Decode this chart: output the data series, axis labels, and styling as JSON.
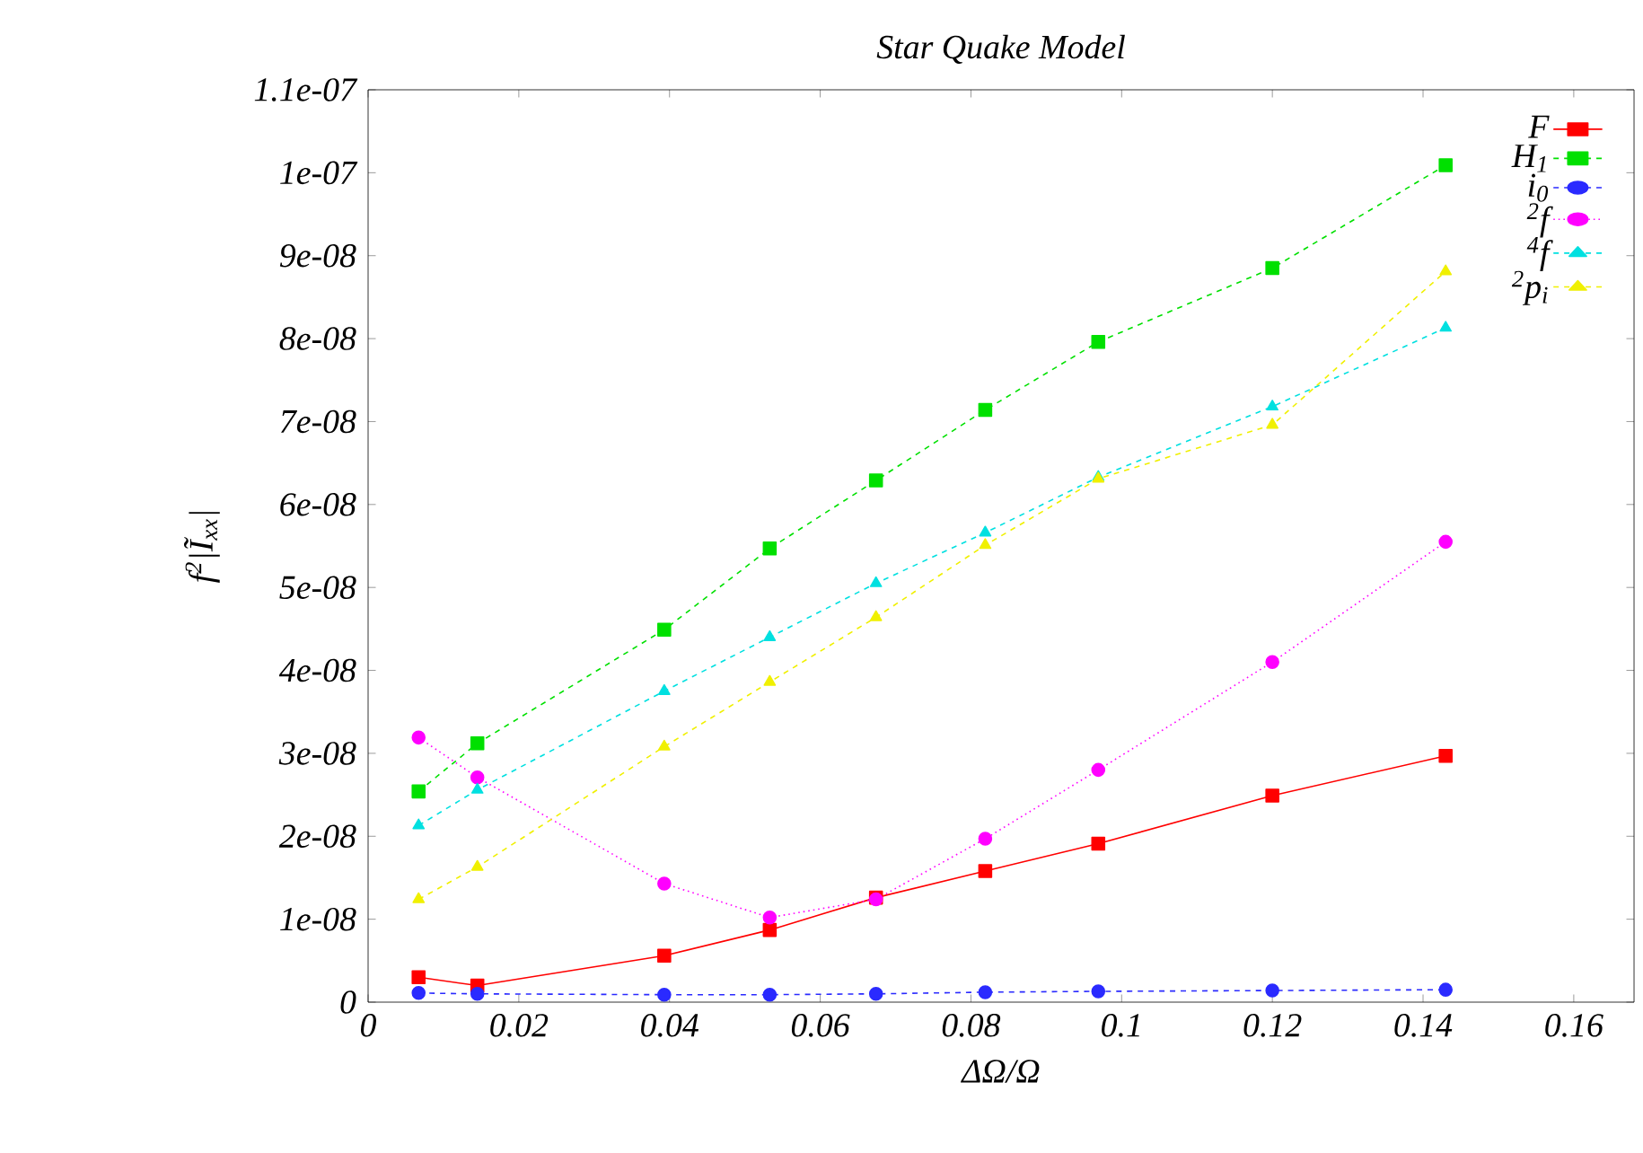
{
  "chart_data": {
    "type": "line",
    "title": "Star Quake Model",
    "xlabel": "ΔΩ/Ω",
    "ylabel": "f$^{2}$|Ĩ$_{xx}$|",
    "x": [
      0.0067,
      0.0145,
      0.0393,
      0.0533,
      0.0674,
      0.0819,
      0.0969,
      0.12,
      0.143
    ],
    "series": [
      {
        "name": "F",
        "color": "#ff0000",
        "marker": "square",
        "line_style": "solid",
        "values": [
          3e-09,
          2e-09,
          5.6e-09,
          8.7e-09,
          1.26e-08,
          1.58e-08,
          1.91e-08,
          2.49e-08,
          2.97e-08
        ]
      },
      {
        "name": "H$_{1}$",
        "color": "#00e000",
        "marker": "square",
        "line_style": "dashed",
        "values": [
          2.54e-08,
          3.12e-08,
          4.49e-08,
          5.47e-08,
          6.29e-08,
          7.14e-08,
          7.96e-08,
          8.85e-08,
          1.009e-07
        ]
      },
      {
        "name": "i$_{0}$",
        "color": "#2a2aff",
        "marker": "circle",
        "line_style": "dashed",
        "values": [
          1.1e-09,
          1e-09,
          9e-10,
          9e-10,
          1e-09,
          1.2e-09,
          1.3e-09,
          1.4e-09,
          1.5e-09
        ]
      },
      {
        "name": "$^{2}$f",
        "color": "#ff00ff",
        "marker": "circle",
        "line_style": "dotted",
        "values": [
          3.19e-08,
          2.71e-08,
          1.43e-08,
          1.02e-08,
          1.24e-08,
          1.97e-08,
          2.8e-08,
          4.1e-08,
          5.55e-08
        ]
      },
      {
        "name": "$^{4}$f",
        "color": "#00e0e0",
        "marker": "triangle",
        "line_style": "dashed",
        "values": [
          2.13e-08,
          2.56e-08,
          3.75e-08,
          4.4e-08,
          5.05e-08,
          5.66e-08,
          6.33e-08,
          7.18e-08,
          8.13e-08
        ]
      },
      {
        "name": "$^{2}$p$_{i}$",
        "color": "#f0f000",
        "marker": "triangle",
        "line_style": "dashed",
        "values": [
          1.24e-08,
          1.63e-08,
          3.08e-08,
          3.86e-08,
          4.64e-08,
          5.51e-08,
          6.31e-08,
          6.96e-08,
          8.81e-08
        ]
      }
    ],
    "xlim": [
      0,
      0.168
    ],
    "ylim": [
      0,
      1.1e-07
    ],
    "xticks": [
      0,
      0.02,
      0.04,
      0.06,
      0.08,
      0.1,
      0.12,
      0.14,
      0.16
    ],
    "yticks": [
      0,
      {
        "value": 1e-08,
        "label": "1e-08"
      },
      {
        "value": 2e-08,
        "label": "2e-08"
      },
      {
        "value": 3e-08,
        "label": "3e-08"
      },
      {
        "value": 4e-08,
        "label": "4e-08"
      },
      {
        "value": 5e-08,
        "label": "5e-08"
      },
      {
        "value": 6e-08,
        "label": "6e-08"
      },
      {
        "value": 7e-08,
        "label": "7e-08"
      },
      {
        "value": 8e-08,
        "label": "8e-08"
      },
      {
        "value": 9e-08,
        "label": "9e-08"
      },
      {
        "value": 1e-07,
        "label": "1e-07"
      },
      {
        "value": 1.1e-07,
        "label": "1.1e-07"
      }
    ],
    "legend": "top right",
    "grid": false
  }
}
